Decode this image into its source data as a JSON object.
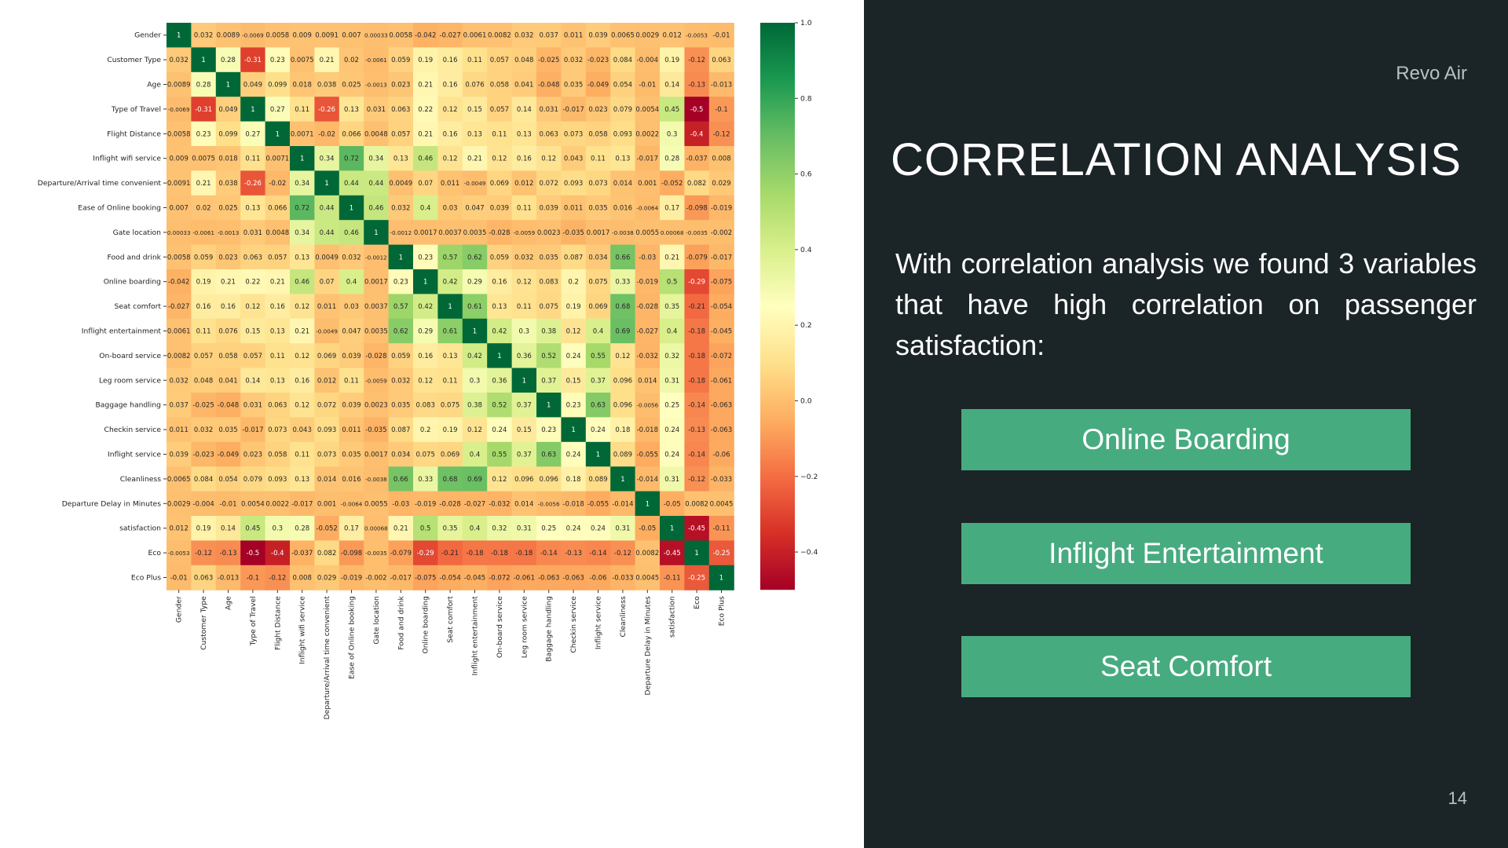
{
  "slide": {
    "brand": "Revo Air",
    "title": "CORRELATION ANALYSIS",
    "body": "With correlation analysis we found 3 variables that have high correlation on passenger satisfaction:",
    "findings": [
      "Online Boarding",
      "Inflight Entertainment",
      "Seat Comfort"
    ],
    "page_number": "14",
    "colors": {
      "panel_bg": "#1b2427",
      "finding_bg": "#47ab80",
      "text": "#ffffff",
      "muted": "#b9c0c2"
    }
  },
  "chart_data": {
    "type": "heatmap",
    "colormap": "RdYlGn",
    "grid": false,
    "labels": [
      "Gender",
      "Customer Type",
      "Age",
      "Type of Travel",
      "Flight Distance",
      "Inflight wifi service",
      "Departure/Arrival time convenient",
      "Ease of Online booking",
      "Gate location",
      "Food and drink",
      "Online boarding",
      "Seat comfort",
      "Inflight entertainment",
      "On-board service",
      "Leg room service",
      "Baggage handling",
      "Checkin service",
      "Inflight service",
      "Cleanliness",
      "Departure Delay in Minutes",
      "satisfaction",
      "Eco",
      "Eco Plus"
    ],
    "cell_text": [
      [
        "1",
        "0.032",
        "0.0089",
        "-0.0069",
        "0.0058",
        "0.009",
        "0.0091",
        "0.007",
        "0.00033",
        "0.0058",
        "-0.042",
        "-0.027",
        "0.0061",
        "0.0082",
        "0.032",
        "0.037",
        "0.011",
        "0.039",
        "0.0065",
        "0.0029",
        "0.012",
        "-0.0053",
        "-0.01"
      ],
      [
        "0.032",
        "1",
        "0.28",
        "-0.31",
        "0.23",
        "0.0075",
        "0.21",
        "0.02",
        "-0.0061",
        "0.059",
        "0.19",
        "0.16",
        "0.11",
        "0.057",
        "0.048",
        "-0.025",
        "0.032",
        "-0.023",
        "0.084",
        "-0.004",
        "0.19",
        "-0.12",
        "0.063"
      ],
      [
        "0.0089",
        "0.28",
        "1",
        "0.049",
        "0.099",
        "0.018",
        "0.038",
        "0.025",
        "-0.0013",
        "0.023",
        "0.21",
        "0.16",
        "0.076",
        "0.058",
        "0.041",
        "-0.048",
        "0.035",
        "-0.049",
        "0.054",
        "-0.01",
        "0.14",
        "-0.13",
        "-0.013"
      ],
      [
        "-0.0069",
        "-0.31",
        "0.049",
        "1",
        "0.27",
        "0.11",
        "-0.26",
        "0.13",
        "0.031",
        "0.063",
        "0.22",
        "0.12",
        "0.15",
        "0.057",
        "0.14",
        "0.031",
        "-0.017",
        "0.023",
        "0.079",
        "0.0054",
        "0.45",
        "-0.5",
        "-0.1"
      ],
      [
        "0.0058",
        "0.23",
        "0.099",
        "0.27",
        "1",
        "0.0071",
        "-0.02",
        "0.066",
        "0.0048",
        "0.057",
        "0.21",
        "0.16",
        "0.13",
        "0.11",
        "0.13",
        "0.063",
        "0.073",
        "0.058",
        "0.093",
        "0.0022",
        "0.3",
        "-0.4",
        "-0.12"
      ],
      [
        "0.009",
        "0.0075",
        "0.018",
        "0.11",
        "0.0071",
        "1",
        "0.34",
        "0.72",
        "0.34",
        "0.13",
        "0.46",
        "0.12",
        "0.21",
        "0.12",
        "0.16",
        "0.12",
        "0.043",
        "0.11",
        "0.13",
        "-0.017",
        "0.28",
        "-0.037",
        "0.008"
      ],
      [
        "0.0091",
        "0.21",
        "0.038",
        "-0.26",
        "-0.02",
        "0.34",
        "1",
        "0.44",
        "0.44",
        "0.0049",
        "0.07",
        "0.011",
        "-0.0049",
        "0.069",
        "0.012",
        "0.072",
        "0.093",
        "0.073",
        "0.014",
        "0.001",
        "-0.052",
        "0.082",
        "0.029"
      ],
      [
        "0.007",
        "0.02",
        "0.025",
        "0.13",
        "0.066",
        "0.72",
        "0.44",
        "1",
        "0.46",
        "0.032",
        "0.4",
        "0.03",
        "0.047",
        "0.039",
        "0.11",
        "0.039",
        "0.011",
        "0.035",
        "0.016",
        "-0.0064",
        "0.17",
        "-0.098",
        "-0.019"
      ],
      [
        "0.00033",
        "-0.0061",
        "-0.0013",
        "0.031",
        "0.0048",
        "0.34",
        "0.44",
        "0.46",
        "1",
        "-0.0012",
        "0.0017",
        "0.0037",
        "0.0035",
        "-0.028",
        "-0.0059",
        "0.0023",
        "-0.035",
        "0.0017",
        "-0.0038",
        "0.0055",
        "0.00068",
        "-0.0035",
        "-0.002"
      ],
      [
        "0.0058",
        "0.059",
        "0.023",
        "0.063",
        "0.057",
        "0.13",
        "0.0049",
        "0.032",
        "-0.0012",
        "1",
        "0.23",
        "0.57",
        "0.62",
        "0.059",
        "0.032",
        "0.035",
        "0.087",
        "0.034",
        "0.66",
        "-0.03",
        "0.21",
        "-0.079",
        "-0.017"
      ],
      [
        "-0.042",
        "0.19",
        "0.21",
        "0.22",
        "0.21",
        "0.46",
        "0.07",
        "0.4",
        "0.0017",
        "0.23",
        "1",
        "0.42",
        "0.29",
        "0.16",
        "0.12",
        "0.083",
        "0.2",
        "0.075",
        "0.33",
        "-0.019",
        "0.5",
        "-0.29",
        "-0.075"
      ],
      [
        "-0.027",
        "0.16",
        "0.16",
        "0.12",
        "0.16",
        "0.12",
        "0.011",
        "0.03",
        "0.0037",
        "0.57",
        "0.42",
        "1",
        "0.61",
        "0.13",
        "0.11",
        "0.075",
        "0.19",
        "0.069",
        "0.68",
        "-0.028",
        "0.35",
        "-0.21",
        "-0.054"
      ],
      [
        "0.0061",
        "0.11",
        "0.076",
        "0.15",
        "0.13",
        "0.21",
        "-0.0049",
        "0.047",
        "0.0035",
        "0.62",
        "0.29",
        "0.61",
        "1",
        "0.42",
        "0.3",
        "0.38",
        "0.12",
        "0.4",
        "0.69",
        "-0.027",
        "0.4",
        "-0.18",
        "-0.045"
      ],
      [
        "0.0082",
        "0.057",
        "0.058",
        "0.057",
        "0.11",
        "0.12",
        "0.069",
        "0.039",
        "-0.028",
        "0.059",
        "0.16",
        "0.13",
        "0.42",
        "1",
        "0.36",
        "0.52",
        "0.24",
        "0.55",
        "0.12",
        "-0.032",
        "0.32",
        "-0.18",
        "-0.072"
      ],
      [
        "0.032",
        "0.048",
        "0.041",
        "0.14",
        "0.13",
        "0.16",
        "0.012",
        "0.11",
        "-0.0059",
        "0.032",
        "0.12",
        "0.11",
        "0.3",
        "0.36",
        "1",
        "0.37",
        "0.15",
        "0.37",
        "0.096",
        "0.014",
        "0.31",
        "-0.18",
        "-0.061"
      ],
      [
        "0.037",
        "-0.025",
        "-0.048",
        "0.031",
        "0.063",
        "0.12",
        "0.072",
        "0.039",
        "0.0023",
        "0.035",
        "0.083",
        "0.075",
        "0.38",
        "0.52",
        "0.37",
        "1",
        "0.23",
        "0.63",
        "0.096",
        "-0.0056",
        "0.25",
        "-0.14",
        "-0.063"
      ],
      [
        "0.011",
        "0.032",
        "0.035",
        "-0.017",
        "0.073",
        "0.043",
        "0.093",
        "0.011",
        "-0.035",
        "0.087",
        "0.2",
        "0.19",
        "0.12",
        "0.24",
        "0.15",
        "0.23",
        "1",
        "0.24",
        "0.18",
        "-0.018",
        "0.24",
        "-0.13",
        "-0.063"
      ],
      [
        "0.039",
        "-0.023",
        "-0.049",
        "0.023",
        "0.058",
        "0.11",
        "0.073",
        "0.035",
        "0.0017",
        "0.034",
        "0.075",
        "0.069",
        "0.4",
        "0.55",
        "0.37",
        "0.63",
        "0.24",
        "1",
        "0.089",
        "-0.055",
        "0.24",
        "-0.14",
        "-0.06"
      ],
      [
        "0.0065",
        "0.084",
        "0.054",
        "0.079",
        "0.093",
        "0.13",
        "0.014",
        "0.016",
        "-0.0038",
        "0.66",
        "0.33",
        "0.68",
        "0.69",
        "0.12",
        "0.096",
        "0.096",
        "0.18",
        "0.089",
        "1",
        "-0.014",
        "0.31",
        "-0.12",
        "-0.033"
      ],
      [
        "0.0029",
        "-0.004",
        "-0.01",
        "0.0054",
        "0.0022",
        "-0.017",
        "0.001",
        "-0.0064",
        "0.0055",
        "-0.03",
        "-0.019",
        "-0.028",
        "-0.027",
        "-0.032",
        "0.014",
        "-0.0056",
        "-0.018",
        "-0.055",
        "-0.014",
        "1",
        "-0.05",
        "0.0082",
        "0.0045"
      ],
      [
        "0.012",
        "0.19",
        "0.14",
        "0.45",
        "0.3",
        "0.28",
        "-0.052",
        "0.17",
        "0.00068",
        "0.21",
        "0.5",
        "0.35",
        "0.4",
        "0.32",
        "0.31",
        "0.25",
        "0.24",
        "0.24",
        "0.31",
        "-0.05",
        "1",
        "-0.45",
        "-0.11"
      ],
      [
        "-0.0053",
        "-0.12",
        "-0.13",
        "-0.5",
        "-0.4",
        "-0.037",
        "0.082",
        "-0.098",
        "-0.0035",
        "-0.079",
        "-0.29",
        "-0.21",
        "-0.18",
        "-0.18",
        "-0.18",
        "-0.14",
        "-0.13",
        "-0.14",
        "-0.12",
        "0.0082",
        "-0.45",
        "1",
        "-0.25"
      ],
      [
        "-0.01",
        "0.063",
        "-0.013",
        "-0.1",
        "-0.12",
        "0.008",
        "0.029",
        "-0.019",
        "-0.002",
        "-0.017",
        "-0.075",
        "-0.054",
        "-0.045",
        "-0.072",
        "-0.061",
        "-0.063",
        "-0.063",
        "-0.06",
        "-0.033",
        "0.0045",
        "-0.11",
        "-0.25",
        "1"
      ]
    ],
    "colorbar": {
      "range": [
        -0.5,
        1.0
      ],
      "ticks": [
        1.0,
        0.8,
        0.6,
        0.4,
        0.2,
        0.0,
        -0.2,
        -0.4
      ],
      "tick_labels": [
        "1.0",
        "0.8",
        "0.6",
        "0.4",
        "0.2",
        "0.0",
        "−0.2",
        "−0.4"
      ]
    }
  }
}
